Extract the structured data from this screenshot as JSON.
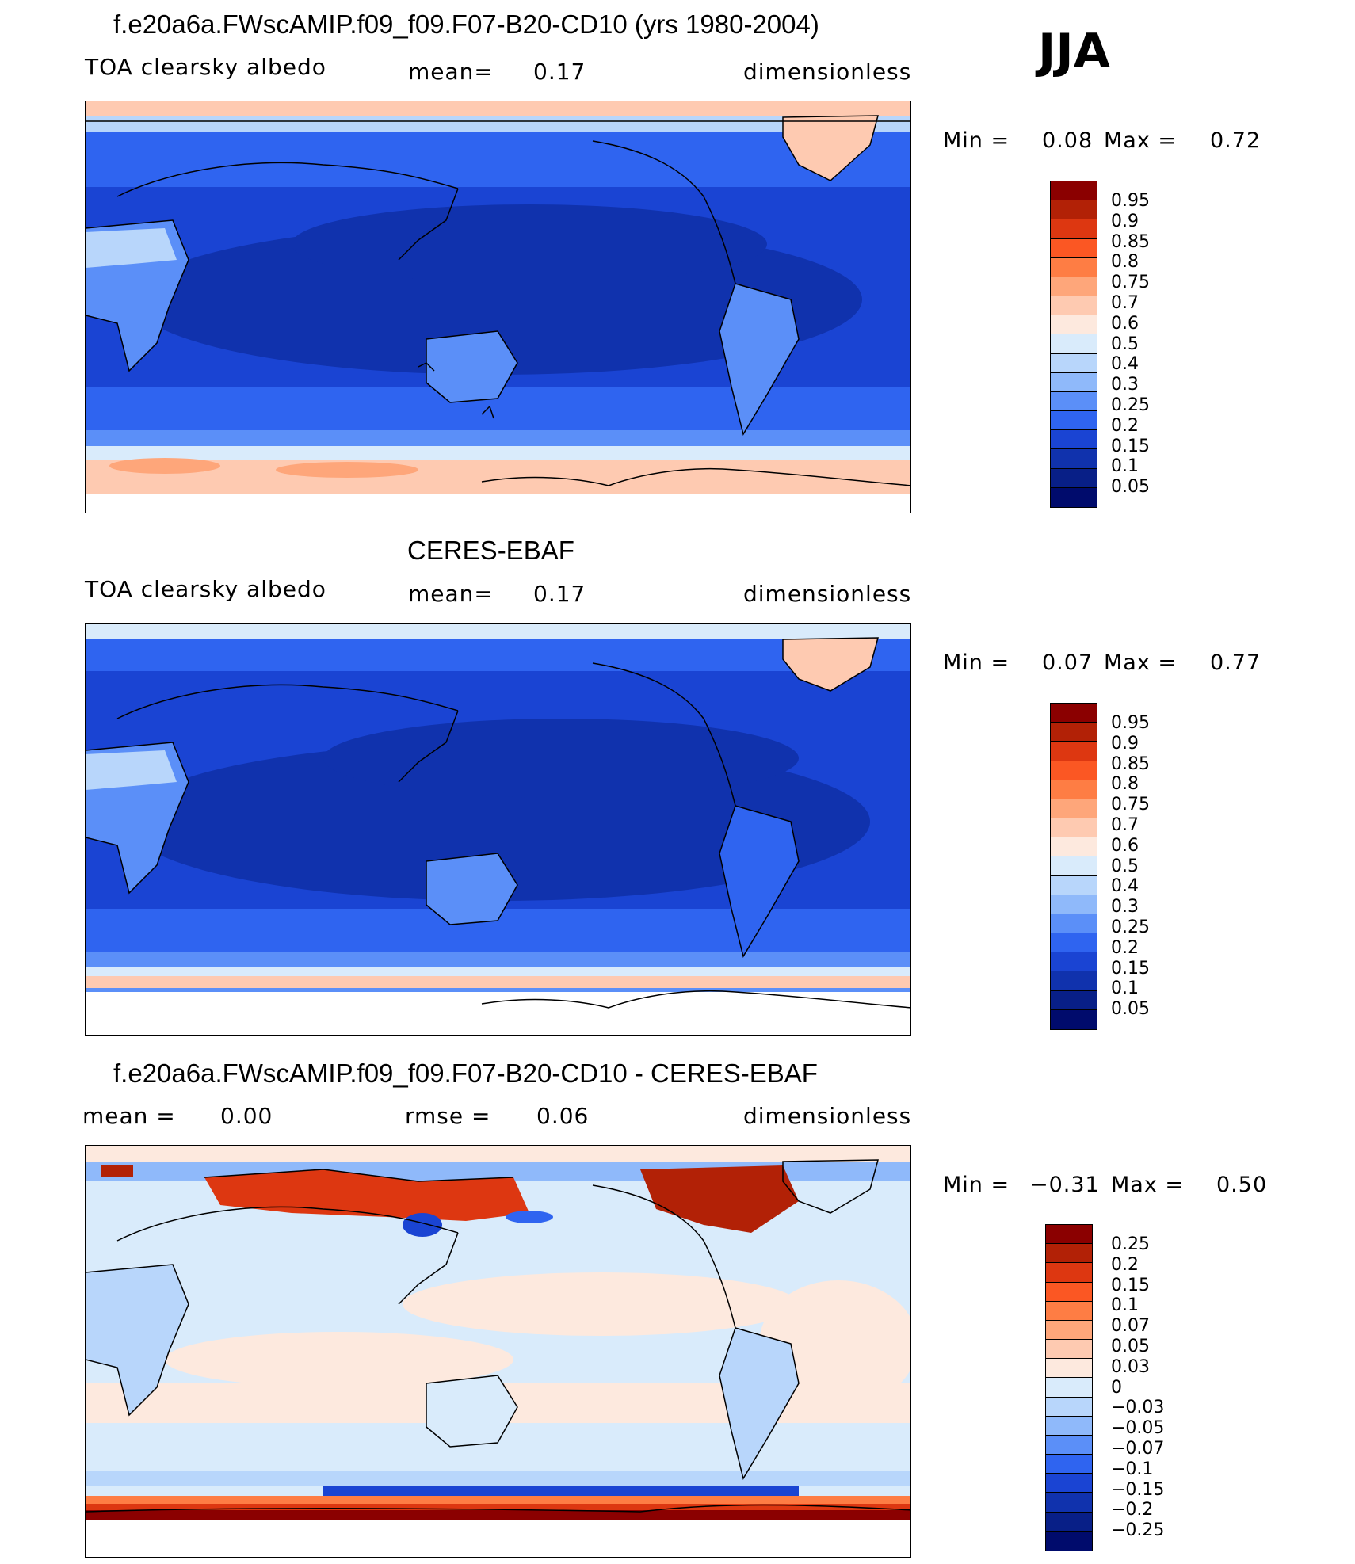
{
  "season": "JJA",
  "panels": [
    {
      "id": "model",
      "title": "f.e20a6a.FWscAMIP.f09_f09.F07-B20-CD10 (yrs 1980-2004)",
      "left_text": "TOA clearsky albedo",
      "mid_label": "mean=",
      "mid_value": "0.17",
      "units": "dimensionless",
      "min_label": "Min =",
      "min_value": "0.08",
      "max_label": "Max =",
      "max_value": "0.72",
      "colorbar_labels": [
        "0.95",
        "0.9",
        "0.85",
        "0.8",
        "0.75",
        "0.7",
        "0.6",
        "0.5",
        "0.4",
        "0.3",
        "0.25",
        "0.2",
        "0.15",
        "0.1",
        "0.05"
      ]
    },
    {
      "id": "obs",
      "title": "CERES-EBAF",
      "left_text": "TOA clearsky albedo",
      "mid_label": "mean=",
      "mid_value": "0.17",
      "units": "dimensionless",
      "min_label": "Min =",
      "min_value": "0.07",
      "max_label": "Max =",
      "max_value": "0.77",
      "colorbar_labels": [
        "0.95",
        "0.9",
        "0.85",
        "0.8",
        "0.75",
        "0.7",
        "0.6",
        "0.5",
        "0.4",
        "0.3",
        "0.25",
        "0.2",
        "0.15",
        "0.1",
        "0.05"
      ]
    },
    {
      "id": "diff",
      "title": "f.e20a6a.FWscAMIP.f09_f09.F07-B20-CD10 - CERES-EBAF",
      "left_text": "mean =",
      "left_value": "0.00",
      "mid_label": "rmse =",
      "mid_value": "0.06",
      "units": "dimensionless",
      "min_label": "Min =",
      "min_value": "−0.31",
      "max_label": "Max =",
      "max_value": "0.50",
      "colorbar_labels": [
        "0.25",
        "0.2",
        "0.15",
        "0.1",
        "0.07",
        "0.05",
        "0.03",
        "0",
        "−0.03",
        "−0.05",
        "−0.07",
        "−0.1",
        "−0.15",
        "−0.2",
        "−0.25"
      ]
    }
  ],
  "colors": {
    "field_palette": [
      "#8b0000",
      "#b22106",
      "#dd3711",
      "#fb5723",
      "#fe7d44",
      "#fea67a",
      "#fecab1",
      "#fde9de",
      "#d9ebfb",
      "#b8d6fb",
      "#8fb9fa",
      "#5b8ff8",
      "#2f64f0",
      "#1a44d3",
      "#1032ad",
      "#081f87",
      "#000b6c"
    ],
    "diff_palette": [
      "#8b0000",
      "#b22106",
      "#dd3711",
      "#fb5723",
      "#fe7d44",
      "#fea67a",
      "#fecab1",
      "#fde9de",
      "#d9ebfb",
      "#b8d6fb",
      "#8fb9fa",
      "#5b8ff8",
      "#2f64f0",
      "#1a44d3",
      "#1032ad",
      "#081f87",
      "#000b6c"
    ],
    "ocean_low": "#1032ad",
    "ocean_mid": "#1a44d3",
    "land_bright": "#5b8ff8",
    "ice": "#fecab1",
    "diff_bg": "#d9ebfb",
    "diff_pos": "#fde9de"
  }
}
